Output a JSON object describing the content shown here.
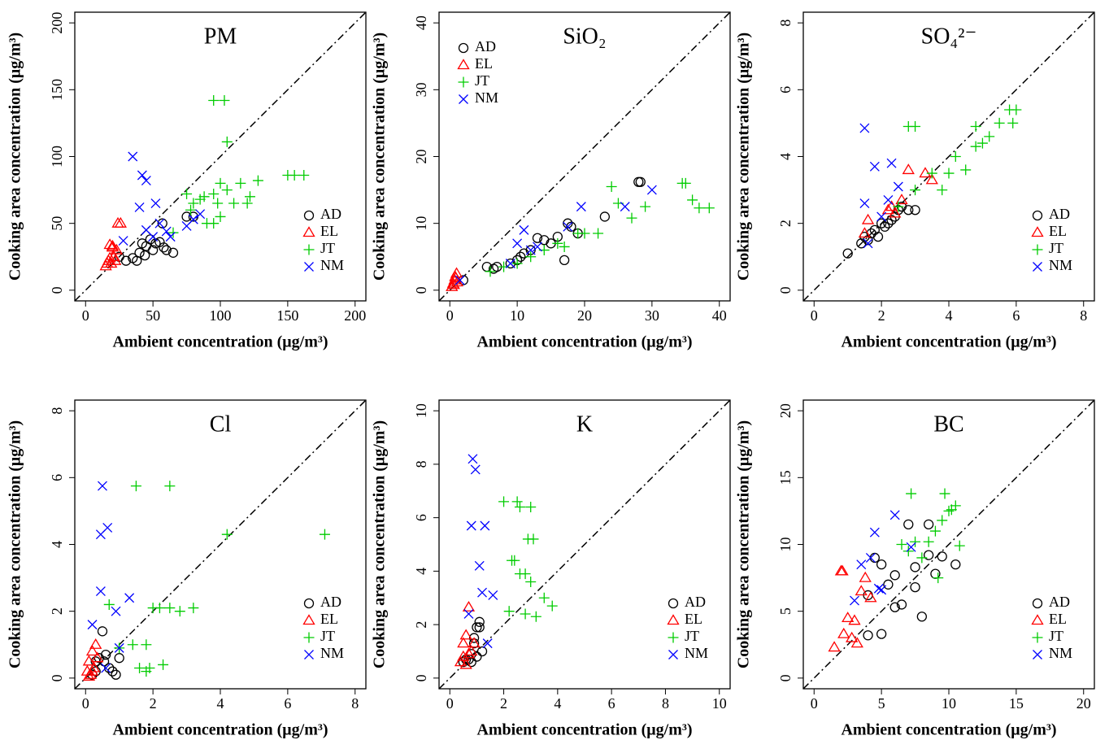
{
  "chart_data": [
    {
      "type": "scatter",
      "title": "PM",
      "xlabel": "Ambient concentration (μg/m³)",
      "ylabel": "Cooking area concentration (μg/m³)",
      "xlim": [
        -8,
        208
      ],
      "ylim": [
        -8,
        208
      ],
      "xticks": [
        0,
        50,
        100,
        150,
        200
      ],
      "yticks": [
        0,
        50,
        100,
        150,
        200
      ],
      "legend": "bottom-right",
      "series": [
        {
          "name": "AD",
          "color": "#000000",
          "marker": "circle",
          "x": [
            30,
            35,
            40,
            42,
            45,
            48,
            50,
            52,
            55,
            58,
            60,
            65,
            25,
            38,
            44,
            75,
            80,
            57
          ],
          "values": [
            22,
            24,
            28,
            35,
            33,
            38,
            30,
            35,
            36,
            32,
            30,
            28,
            25,
            22,
            26,
            55,
            55,
            50
          ]
        },
        {
          "name": "EL",
          "color": "#ff0000",
          "marker": "triangle",
          "x": [
            15,
            16,
            17,
            18,
            19,
            20,
            21,
            22,
            23,
            18,
            20,
            24,
            26
          ],
          "values": [
            18,
            20,
            22,
            24,
            20,
            33,
            25,
            22,
            30,
            34,
            32,
            50,
            50
          ]
        },
        {
          "name": "JT",
          "color": "#00cc00",
          "marker": "plus",
          "x": [
            95,
            103,
            105,
            75,
            80,
            85,
            88,
            90,
            95,
            98,
            100,
            105,
            110,
            115,
            120,
            122,
            128,
            150,
            155,
            162,
            100,
            95,
            78,
            65
          ],
          "values": [
            142,
            142,
            111,
            72,
            65,
            68,
            70,
            50,
            50,
            65,
            55,
            75,
            65,
            80,
            65,
            70,
            82,
            86,
            86,
            86,
            80,
            72,
            60,
            43
          ]
        },
        {
          "name": "NM",
          "color": "#0000ff",
          "marker": "cross",
          "x": [
            35,
            42,
            45,
            52,
            60,
            63,
            55,
            40,
            45,
            50,
            80,
            85,
            28,
            75
          ],
          "values": [
            100,
            86,
            82,
            65,
            44,
            40,
            50,
            62,
            45,
            40,
            53,
            57,
            37,
            48
          ]
        }
      ]
    },
    {
      "type": "scatter",
      "title": "SiO₂",
      "xlabel": "Ambient concentration (μg/m³)",
      "ylabel": "Cooking area concentration (μg/m³)",
      "xlim": [
        -1.6,
        41.6
      ],
      "ylim": [
        -1.6,
        41.6
      ],
      "xticks": [
        0,
        10,
        20,
        30,
        40
      ],
      "yticks": [
        0,
        10,
        20,
        30,
        40
      ],
      "legend": "top-left",
      "series": [
        {
          "name": "AD",
          "color": "#000000",
          "marker": "circle",
          "x": [
            5.5,
            6.5,
            7,
            9,
            10,
            10.5,
            11,
            12,
            13,
            14,
            15,
            16,
            17,
            17.5,
            18,
            19,
            23,
            28,
            28.3,
            2
          ],
          "values": [
            3.5,
            3.2,
            3.5,
            4,
            4.5,
            5,
            5.5,
            6,
            7.8,
            7.5,
            7,
            8,
            4.5,
            10,
            9.5,
            8.5,
            11,
            16.2,
            16.2,
            1.5
          ]
        },
        {
          "name": "EL",
          "color": "#ff0000",
          "marker": "triangle",
          "x": [
            0.3,
            0.5,
            0.7,
            0.8,
            1,
            1.1,
            0.6,
            0.9
          ],
          "values": [
            0.5,
            1,
            1.5,
            2,
            2.5,
            1.2,
            0.8,
            1.8
          ]
        },
        {
          "name": "JT",
          "color": "#00cc00",
          "marker": "plus",
          "x": [
            6,
            8,
            10,
            12,
            14,
            16,
            17,
            19,
            20,
            22,
            24,
            25,
            27,
            29,
            34.5,
            35,
            36,
            37,
            38.5
          ],
          "values": [
            2.8,
            3.5,
            4,
            5,
            6,
            7,
            6.5,
            8.5,
            8.5,
            8.5,
            15.5,
            13,
            10.8,
            12.5,
            16,
            16,
            13.5,
            12.3,
            12.3
          ]
        },
        {
          "name": "NM",
          "color": "#0000ff",
          "marker": "cross",
          "x": [
            1.5,
            9,
            10,
            11,
            12,
            13,
            17.5,
            19.5,
            26,
            30
          ],
          "values": [
            1.5,
            4,
            7,
            9,
            6,
            6.5,
            9.5,
            12.5,
            12.5,
            15
          ]
        }
      ]
    },
    {
      "type": "scatter",
      "title": "SO₄²⁻",
      "xlabel": "Ambient concentration (μg/m³)",
      "ylabel": "Cooking area concentration (μg/m³)",
      "xlim": [
        -0.32,
        8.32
      ],
      "ylim": [
        -0.32,
        8.32
      ],
      "xticks": [
        0,
        2,
        4,
        6,
        8
      ],
      "yticks": [
        0,
        2,
        4,
        6,
        8
      ],
      "legend": "bottom-right",
      "series": [
        {
          "name": "AD",
          "color": "#000000",
          "marker": "circle",
          "x": [
            1,
            1.4,
            1.6,
            1.7,
            1.8,
            1.9,
            2,
            2.1,
            2.2,
            2.3,
            2.5,
            2.6,
            2.8,
            3,
            2.4,
            1.5
          ],
          "values": [
            1.1,
            1.4,
            1.5,
            1.7,
            1.8,
            1.6,
            2,
            1.9,
            2,
            2.1,
            2.4,
            2.5,
            2.4,
            2.4,
            2.2,
            1.6
          ]
        },
        {
          "name": "EL",
          "color": "#ff0000",
          "marker": "triangle",
          "x": [
            1.5,
            1.6,
            2.2,
            2.3,
            2.4,
            2.6,
            2.8,
            3.3,
            3.5
          ],
          "values": [
            1.7,
            2.1,
            2.4,
            2.5,
            2.3,
            2.7,
            3.6,
            3.5,
            3.3
          ]
        },
        {
          "name": "JT",
          "color": "#00cc00",
          "marker": "plus",
          "x": [
            2.8,
            3,
            2.5,
            3,
            3.5,
            3.8,
            4,
            4.2,
            4.5,
            4.8,
            5,
            5.2,
            5.5,
            5.8,
            5.9,
            6,
            4.8
          ],
          "values": [
            4.9,
            4.9,
            2.5,
            3,
            3.5,
            3,
            3.5,
            4,
            3.6,
            4.9,
            4.4,
            4.6,
            5,
            5.4,
            5,
            5.4,
            4.3
          ]
        },
        {
          "name": "NM",
          "color": "#0000ff",
          "marker": "cross",
          "x": [
            1.5,
            1.5,
            1.8,
            2,
            2.2,
            2.3,
            2.5,
            1.6
          ],
          "values": [
            4.85,
            2.6,
            3.7,
            2.2,
            2.7,
            3.8,
            3.1,
            1.4
          ]
        }
      ]
    },
    {
      "type": "scatter",
      "title": "Cl",
      "xlabel": "Ambient concentration (μg/m³)",
      "ylabel": "Cooking area concentration (μg/m³)",
      "xlim": [
        -0.32,
        8.32
      ],
      "ylim": [
        -0.32,
        8.32
      ],
      "xticks": [
        0,
        2,
        4,
        6,
        8
      ],
      "yticks": [
        0,
        2,
        4,
        6,
        8
      ],
      "legend": "bottom-right",
      "series": [
        {
          "name": "AD",
          "color": "#000000",
          "marker": "circle",
          "x": [
            0.2,
            0.3,
            0.4,
            0.5,
            0.55,
            0.6,
            0.7,
            0.8,
            0.9,
            1,
            0.3
          ],
          "values": [
            0.1,
            0.5,
            0.6,
            1.4,
            0.5,
            0.7,
            0.3,
            0.2,
            0.1,
            0.6,
            0.2
          ]
        },
        {
          "name": "EL",
          "color": "#ff0000",
          "marker": "triangle",
          "x": [
            0.05,
            0.1,
            0.15,
            0.2,
            0.25,
            0.3,
            0.35,
            0.1,
            0.2
          ],
          "values": [
            0.2,
            0.5,
            0.1,
            0.8,
            0.3,
            1,
            0.6,
            0.05,
            0.2
          ]
        },
        {
          "name": "JT",
          "color": "#00cc00",
          "marker": "plus",
          "x": [
            1.5,
            2.5,
            4.2,
            7.1,
            0.7,
            1,
            1.4,
            1.6,
            1.8,
            2,
            2.2,
            2.5,
            2.8,
            3.2,
            1.8,
            1.9,
            2.3
          ],
          "values": [
            5.75,
            5.75,
            4.3,
            4.3,
            2.2,
            0.9,
            1,
            0.3,
            1,
            2.1,
            2.1,
            2.1,
            2,
            2.1,
            0.2,
            0.3,
            0.4
          ]
        },
        {
          "name": "NM",
          "color": "#0000ff",
          "marker": "cross",
          "x": [
            0.5,
            0.65,
            0.45,
            0.45,
            0.2,
            1.3,
            0.9,
            1,
            0.6
          ],
          "values": [
            5.75,
            4.5,
            4.3,
            2.6,
            1.6,
            2.4,
            2,
            0.9,
            0.3
          ]
        }
      ]
    },
    {
      "type": "scatter",
      "title": "K",
      "xlabel": "Ambient concentration (μg/m³)",
      "ylabel": "Cooking area concentration (μg/m³)",
      "xlim": [
        -0.4,
        10.4
      ],
      "ylim": [
        -0.4,
        10.4
      ],
      "xticks": [
        0,
        2,
        4,
        6,
        8,
        10
      ],
      "yticks": [
        0,
        2,
        4,
        6,
        8,
        10
      ],
      "legend": "bottom-right",
      "series": [
        {
          "name": "AD",
          "color": "#000000",
          "marker": "circle",
          "x": [
            0.5,
            0.7,
            0.8,
            0.9,
            1,
            1.1,
            1.2,
            0.8,
            0.9,
            1,
            1.1,
            0.6
          ],
          "values": [
            0.6,
            0.7,
            0.9,
            1.3,
            1.9,
            2.1,
            1,
            0.6,
            1.5,
            0.8,
            1.9,
            0.7
          ]
        },
        {
          "name": "EL",
          "color": "#ff0000",
          "marker": "triangle",
          "x": [
            0.4,
            0.5,
            0.6,
            0.7,
            0.8,
            0.9,
            0.5,
            0.6,
            0.7
          ],
          "values": [
            0.6,
            1.3,
            1.6,
            2.65,
            1,
            1.3,
            0.8,
            0.5,
            0.9
          ]
        },
        {
          "name": "JT",
          "color": "#00cc00",
          "marker": "plus",
          "x": [
            2,
            2.5,
            2.6,
            3,
            3.1,
            2.3,
            2.4,
            2.6,
            2.8,
            3,
            2.9,
            3.5,
            3.8,
            2.8,
            2.2,
            3.2
          ],
          "values": [
            6.6,
            6.6,
            6.4,
            6.4,
            5.2,
            4.4,
            4.4,
            3.9,
            3.9,
            3.6,
            5.2,
            3,
            2.7,
            2.4,
            2.5,
            2.3
          ]
        },
        {
          "name": "NM",
          "color": "#0000ff",
          "marker": "cross",
          "x": [
            0.85,
            0.95,
            0.8,
            1.3,
            1.1,
            1.2,
            1.6,
            1.4,
            0.7
          ],
          "values": [
            8.2,
            7.8,
            5.7,
            5.7,
            4.2,
            3.2,
            3.1,
            1.3,
            2.4
          ]
        }
      ]
    },
    {
      "type": "scatter",
      "title": "BC",
      "xlabel": "Ambient concentration (μg/m³)",
      "ylabel": "Cooking area concentration (μg/m³)",
      "xlim": [
        -0.8,
        20.8
      ],
      "ylim": [
        -0.8,
        20.8
      ],
      "xticks": [
        0,
        5,
        10,
        15,
        20
      ],
      "yticks": [
        0,
        5,
        10,
        15,
        20
      ],
      "legend": "bottom-right",
      "series": [
        {
          "name": "AD",
          "color": "#000000",
          "marker": "circle",
          "x": [
            4,
            5,
            5.5,
            6,
            6.5,
            7,
            7.5,
            8,
            8.5,
            9,
            9.5,
            10.5,
            4,
            5,
            6,
            7.5,
            8.5,
            4.5
          ],
          "values": [
            6.2,
            8.5,
            7,
            7.7,
            5.5,
            11.5,
            8.3,
            4.6,
            9.2,
            7.8,
            9.1,
            8.5,
            3.2,
            3.3,
            5.3,
            6.8,
            11.5,
            9
          ]
        },
        {
          "name": "EL",
          "color": "#ff0000",
          "marker": "triangle",
          "x": [
            1.5,
            2,
            2.1,
            2.5,
            3,
            3.5,
            3.8,
            4.2,
            2.2,
            2.8,
            3.2
          ],
          "values": [
            2.3,
            8,
            8,
            4.5,
            4.3,
            6.5,
            7.5,
            6,
            3.3,
            3,
            2.6
          ]
        },
        {
          "name": "JT",
          "color": "#00cc00",
          "marker": "plus",
          "x": [
            7.2,
            9.7,
            10,
            10.2,
            10.5,
            10.8,
            8,
            8.5,
            9,
            9.5,
            6.5,
            7,
            7.5,
            9.2
          ],
          "values": [
            13.8,
            13.8,
            12.5,
            12.6,
            12.9,
            9.9,
            9,
            10.2,
            11,
            11.8,
            10,
            9.5,
            10.2,
            7.5
          ]
        },
        {
          "name": "NM",
          "color": "#0000ff",
          "marker": "cross",
          "x": [
            3.5,
            4.5,
            4.8,
            6,
            7.2,
            3,
            5,
            4.2
          ],
          "values": [
            8.5,
            10.9,
            6.7,
            12.2,
            9.8,
            5.8,
            6.6,
            9
          ]
        }
      ]
    }
  ]
}
